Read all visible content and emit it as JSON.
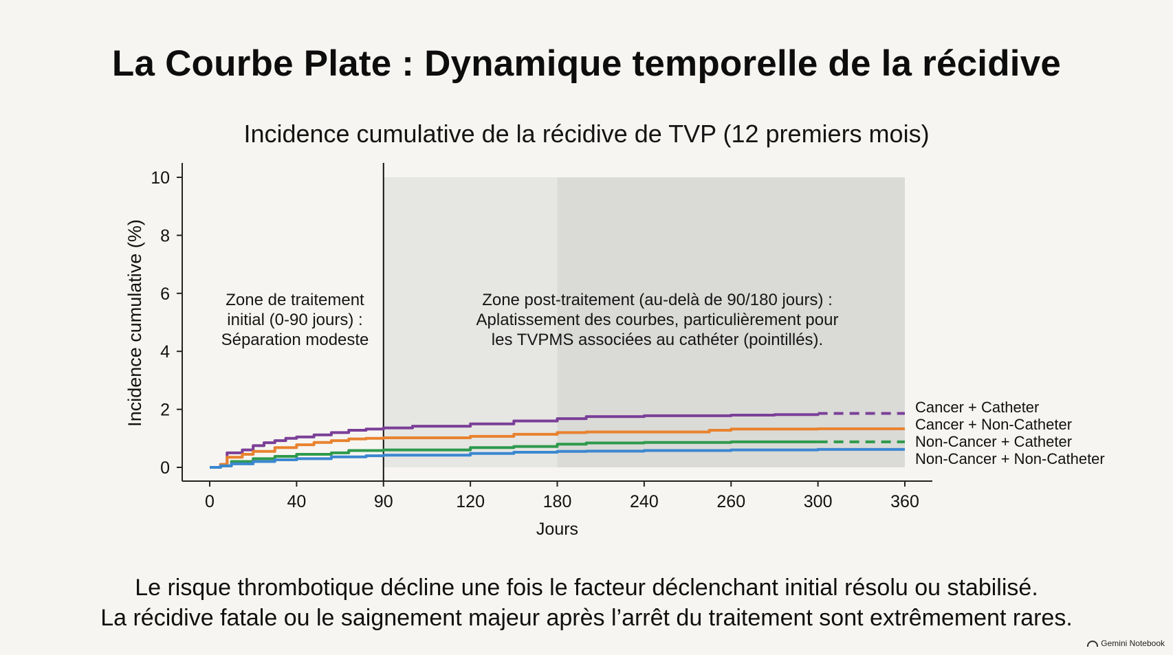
{
  "slide_title": "La Courbe Plate : Dynamique temporelle de la récidive",
  "footer": {
    "line1": "Le risque thrombotique décline une fois le facteur déclenchant initial résolu ou stabilisé.",
    "line2": "La récidive fatale ou le saignement majeur après l’arrêt du traitement sont extrêmement rares."
  },
  "brand": "Gemini Notebook",
  "chart_data": {
    "type": "line",
    "title": "Incidence cumulative de la récidive de TVP (12 premiers mois)",
    "xlabel": "Jours",
    "ylabel": "Incidence cumulative (%)",
    "ylim": [
      0,
      10
    ],
    "x_ticks": [
      "0",
      "40",
      "90",
      "120",
      "180",
      "240",
      "260",
      "300",
      "360"
    ],
    "y_ticks": [
      0,
      2,
      4,
      6,
      8,
      10
    ],
    "grid": false,
    "legend_placement": "right",
    "vertical_marker_x": "90",
    "regions": [
      {
        "from": "90",
        "to": "180",
        "color": "#e6e6e3"
      },
      {
        "from": "180",
        "to": "360",
        "color": "#dadad7"
      }
    ],
    "annotations": [
      {
        "lines": [
          "Zone de traitement",
          "initial (0-90 jours) :",
          "Séparation modeste"
        ]
      },
      {
        "lines": [
          "Zone post-traitement (au-delà de 90/180 jours) :",
          "Aplatissement des courbes, particulièrement pour",
          "les TVPMS associées au cathéter (pointillés)."
        ]
      }
    ],
    "series": [
      {
        "name": "Cancer + Catheter",
        "color": "#7b3f98",
        "dashed_from": "300",
        "points": [
          [
            "0",
            0
          ],
          [
            "5",
            0.1
          ],
          [
            "8",
            0.5
          ],
          [
            "15",
            0.6
          ],
          [
            "20",
            0.75
          ],
          [
            "25",
            0.85
          ],
          [
            "30",
            0.92
          ],
          [
            "35",
            1.0
          ],
          [
            "40",
            1.05
          ],
          [
            "50",
            1.12
          ],
          [
            "60",
            1.2
          ],
          [
            "70",
            1.28
          ],
          [
            "80",
            1.32
          ],
          [
            "90",
            1.36
          ],
          [
            "100",
            1.42
          ],
          [
            "120",
            1.5
          ],
          [
            "150",
            1.6
          ],
          [
            "180",
            1.68
          ],
          [
            "200",
            1.75
          ],
          [
            "240",
            1.78
          ],
          [
            "260",
            1.8
          ],
          [
            "280",
            1.82
          ],
          [
            "300",
            1.86
          ],
          [
            "360",
            1.86
          ]
        ]
      },
      {
        "name": "Cancer + Non-Catheter",
        "color": "#e8822e",
        "dashed_from": "",
        "points": [
          [
            "0",
            0
          ],
          [
            "5",
            0.1
          ],
          [
            "8",
            0.35
          ],
          [
            "15",
            0.45
          ],
          [
            "20",
            0.55
          ],
          [
            "30",
            0.68
          ],
          [
            "40",
            0.78
          ],
          [
            "50",
            0.86
          ],
          [
            "60",
            0.92
          ],
          [
            "70",
            0.98
          ],
          [
            "80",
            1.0
          ],
          [
            "90",
            1.02
          ],
          [
            "120",
            1.07
          ],
          [
            "150",
            1.14
          ],
          [
            "180",
            1.2
          ],
          [
            "200",
            1.22
          ],
          [
            "240",
            1.22
          ],
          [
            "255",
            1.28
          ],
          [
            "260",
            1.32
          ],
          [
            "300",
            1.33
          ],
          [
            "360",
            1.33
          ]
        ]
      },
      {
        "name": "Non-Cancer + Catheter",
        "color": "#2e9a4c",
        "dashed_from": "300",
        "points": [
          [
            "0",
            0
          ],
          [
            "5",
            0.05
          ],
          [
            "10",
            0.2
          ],
          [
            "20",
            0.3
          ],
          [
            "30",
            0.38
          ],
          [
            "40",
            0.45
          ],
          [
            "60",
            0.5
          ],
          [
            "70",
            0.58
          ],
          [
            "90",
            0.6
          ],
          [
            "120",
            0.68
          ],
          [
            "150",
            0.72
          ],
          [
            "180",
            0.8
          ],
          [
            "200",
            0.84
          ],
          [
            "240",
            0.86
          ],
          [
            "260",
            0.88
          ],
          [
            "300",
            0.88
          ],
          [
            "360",
            0.88
          ]
        ]
      },
      {
        "name": "Non-Cancer + Non-Catheter",
        "color": "#3b87d0",
        "dashed_from": "",
        "points": [
          [
            "0",
            0
          ],
          [
            "5",
            0.05
          ],
          [
            "10",
            0.12
          ],
          [
            "20",
            0.2
          ],
          [
            "30",
            0.26
          ],
          [
            "40",
            0.3
          ],
          [
            "60",
            0.36
          ],
          [
            "80",
            0.4
          ],
          [
            "90",
            0.42
          ],
          [
            "120",
            0.48
          ],
          [
            "150",
            0.52
          ],
          [
            "180",
            0.55
          ],
          [
            "200",
            0.56
          ],
          [
            "240",
            0.58
          ],
          [
            "260",
            0.6
          ],
          [
            "300",
            0.62
          ],
          [
            "360",
            0.62
          ]
        ]
      }
    ]
  }
}
